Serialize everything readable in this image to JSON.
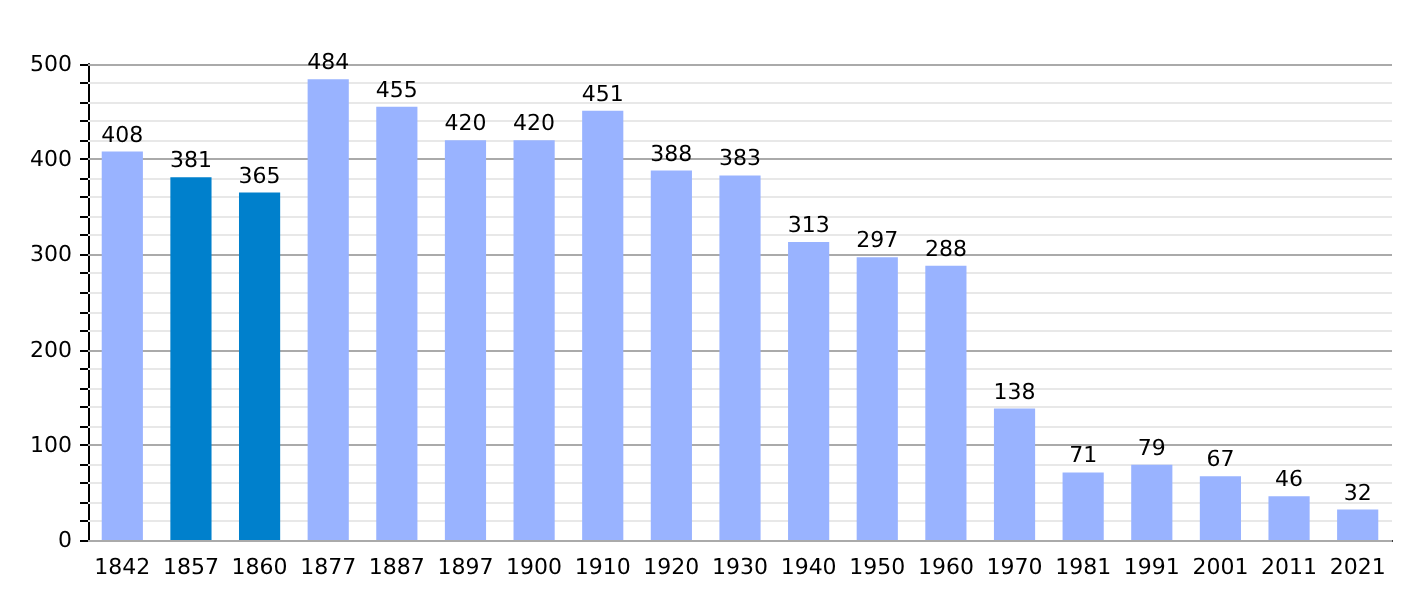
{
  "chart_data": {
    "type": "bar",
    "categories": [
      "1842",
      "1857",
      "1860",
      "1877",
      "1887",
      "1897",
      "1900",
      "1910",
      "1920",
      "1930",
      "1940",
      "1950",
      "1960",
      "1970",
      "1981",
      "1991",
      "2001",
      "2011",
      "2021"
    ],
    "values": [
      408,
      381,
      365,
      484,
      455,
      420,
      420,
      451,
      388,
      383,
      313,
      297,
      288,
      138,
      71,
      79,
      67,
      46,
      32
    ],
    "colors": [
      "#99b3ff",
      "#0080cc",
      "#0080cc",
      "#99b3ff",
      "#99b3ff",
      "#99b3ff",
      "#99b3ff",
      "#99b3ff",
      "#99b3ff",
      "#99b3ff",
      "#99b3ff",
      "#99b3ff",
      "#99b3ff",
      "#99b3ff",
      "#99b3ff",
      "#99b3ff",
      "#99b3ff",
      "#99b3ff",
      "#99b3ff"
    ],
    "ylim": [
      0,
      500
    ],
    "yticks": [
      0,
      {
        "value": 20,
        "label": null
      },
      {
        "value": 40,
        "label": null
      },
      {
        "value": 60,
        "label": null
      },
      {
        "value": 80,
        "label": null
      },
      100,
      {
        "value": 120,
        "label": null
      },
      {
        "value": 140,
        "label": null
      },
      {
        "value": 160,
        "label": null
      },
      {
        "value": 180,
        "label": null
      },
      200,
      {
        "value": 220,
        "label": null
      },
      {
        "value": 240,
        "label": null
      },
      {
        "value": 260,
        "label": null
      },
      {
        "value": 280,
        "label": null
      },
      300,
      {
        "value": 320,
        "label": null
      },
      {
        "value": 340,
        "label": null
      },
      {
        "value": 360,
        "label": null
      },
      {
        "value": 380,
        "label": null
      },
      400,
      {
        "value": 420,
        "label": null
      },
      {
        "value": 440,
        "label": null
      },
      {
        "value": 460,
        "label": null
      },
      {
        "value": 480,
        "label": null
      },
      500
    ],
    "grid": "y",
    "data_labels": true
  }
}
